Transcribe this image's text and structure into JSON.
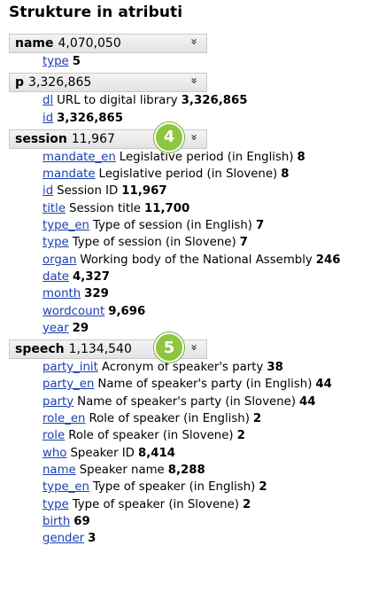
{
  "title": "Strukture in atributi",
  "colors": {
    "badge": "#8dc63f",
    "link": "#1a3fb4",
    "header_bg": "#e9e9e9"
  },
  "structures": [
    {
      "name": "name",
      "count": "4,070,050",
      "badge": null,
      "attributes": [
        {
          "key": "type",
          "desc": "",
          "count": "5"
        }
      ]
    },
    {
      "name": "p",
      "count": "3,326,865",
      "badge": null,
      "attributes": [
        {
          "key": "dl",
          "desc": "URL to digital library",
          "count": "3,326,865"
        },
        {
          "key": "id",
          "desc": "",
          "count": "3,326,865"
        }
      ]
    },
    {
      "name": "session",
      "count": "11,967",
      "badge": "4",
      "attributes": [
        {
          "key": "mandate_en",
          "desc": "Legislative period (in English)",
          "count": "8"
        },
        {
          "key": "mandate",
          "desc": "Legislative period (in Slovene)",
          "count": "8"
        },
        {
          "key": "id",
          "desc": "Session ID",
          "count": "11,967"
        },
        {
          "key": "title",
          "desc": "Session title",
          "count": "11,700"
        },
        {
          "key": "type_en",
          "desc": "Type of session (in English)",
          "count": "7"
        },
        {
          "key": "type",
          "desc": "Type of session (in Slovene)",
          "count": "7"
        },
        {
          "key": "organ",
          "desc": "Working body of the National Assembly",
          "count": "246"
        },
        {
          "key": "date",
          "desc": "",
          "count": "4,327"
        },
        {
          "key": "month",
          "desc": "",
          "count": "329"
        },
        {
          "key": "wordcount",
          "desc": "",
          "count": "9,696"
        },
        {
          "key": "year",
          "desc": "",
          "count": "29"
        }
      ]
    },
    {
      "name": "speech",
      "count": "1,134,540",
      "badge": "5",
      "attributes": [
        {
          "key": "party_init",
          "desc": "Acronym of speaker's party",
          "count": "38"
        },
        {
          "key": "party_en",
          "desc": "Name of speaker's party (in English)",
          "count": "44"
        },
        {
          "key": "party",
          "desc": "Name of speaker's party (in Slovene)",
          "count": "44"
        },
        {
          "key": "role_en",
          "desc": "Role of speaker (in English)",
          "count": "2"
        },
        {
          "key": "role",
          "desc": "Role of speaker (in Slovene)",
          "count": "2"
        },
        {
          "key": "who",
          "desc": "Speaker ID",
          "count": "8,414"
        },
        {
          "key": "name",
          "desc": "Speaker name",
          "count": "8,288"
        },
        {
          "key": "type_en",
          "desc": "Type of speaker (in English)",
          "count": "2"
        },
        {
          "key": "type",
          "desc": "Type of speaker (in Slovene)",
          "count": "2"
        },
        {
          "key": "birth",
          "desc": "",
          "count": "69"
        },
        {
          "key": "gender",
          "desc": "",
          "count": "3"
        }
      ]
    }
  ]
}
